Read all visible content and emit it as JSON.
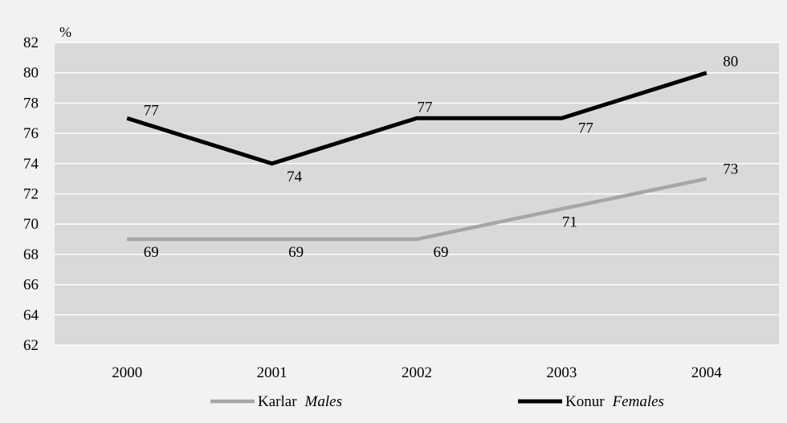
{
  "chart_data": {
    "type": "line",
    "categories": [
      "2000",
      "2001",
      "2002",
      "2003",
      "2004"
    ],
    "series": [
      {
        "name_tr": "Karlar",
        "name_en": "Males",
        "color": "#a6a6a6",
        "values": [
          69,
          69,
          69,
          71,
          73
        ]
      },
      {
        "name_tr": "Konur",
        "name_en": "Females",
        "color": "#000000",
        "values": [
          77,
          74,
          77,
          77,
          80
        ]
      }
    ],
    "ylabel": "%",
    "ylim": [
      62,
      82
    ],
    "yticks": [
      "62",
      "64",
      "66",
      "68",
      "70",
      "72",
      "74",
      "76",
      "78",
      "80",
      "82"
    ],
    "grid": true,
    "legend_position": "bottom",
    "plot_background": "#d9d9d9",
    "chart_background": "#f2f2f2",
    "gridline_color": "#ffffff"
  }
}
